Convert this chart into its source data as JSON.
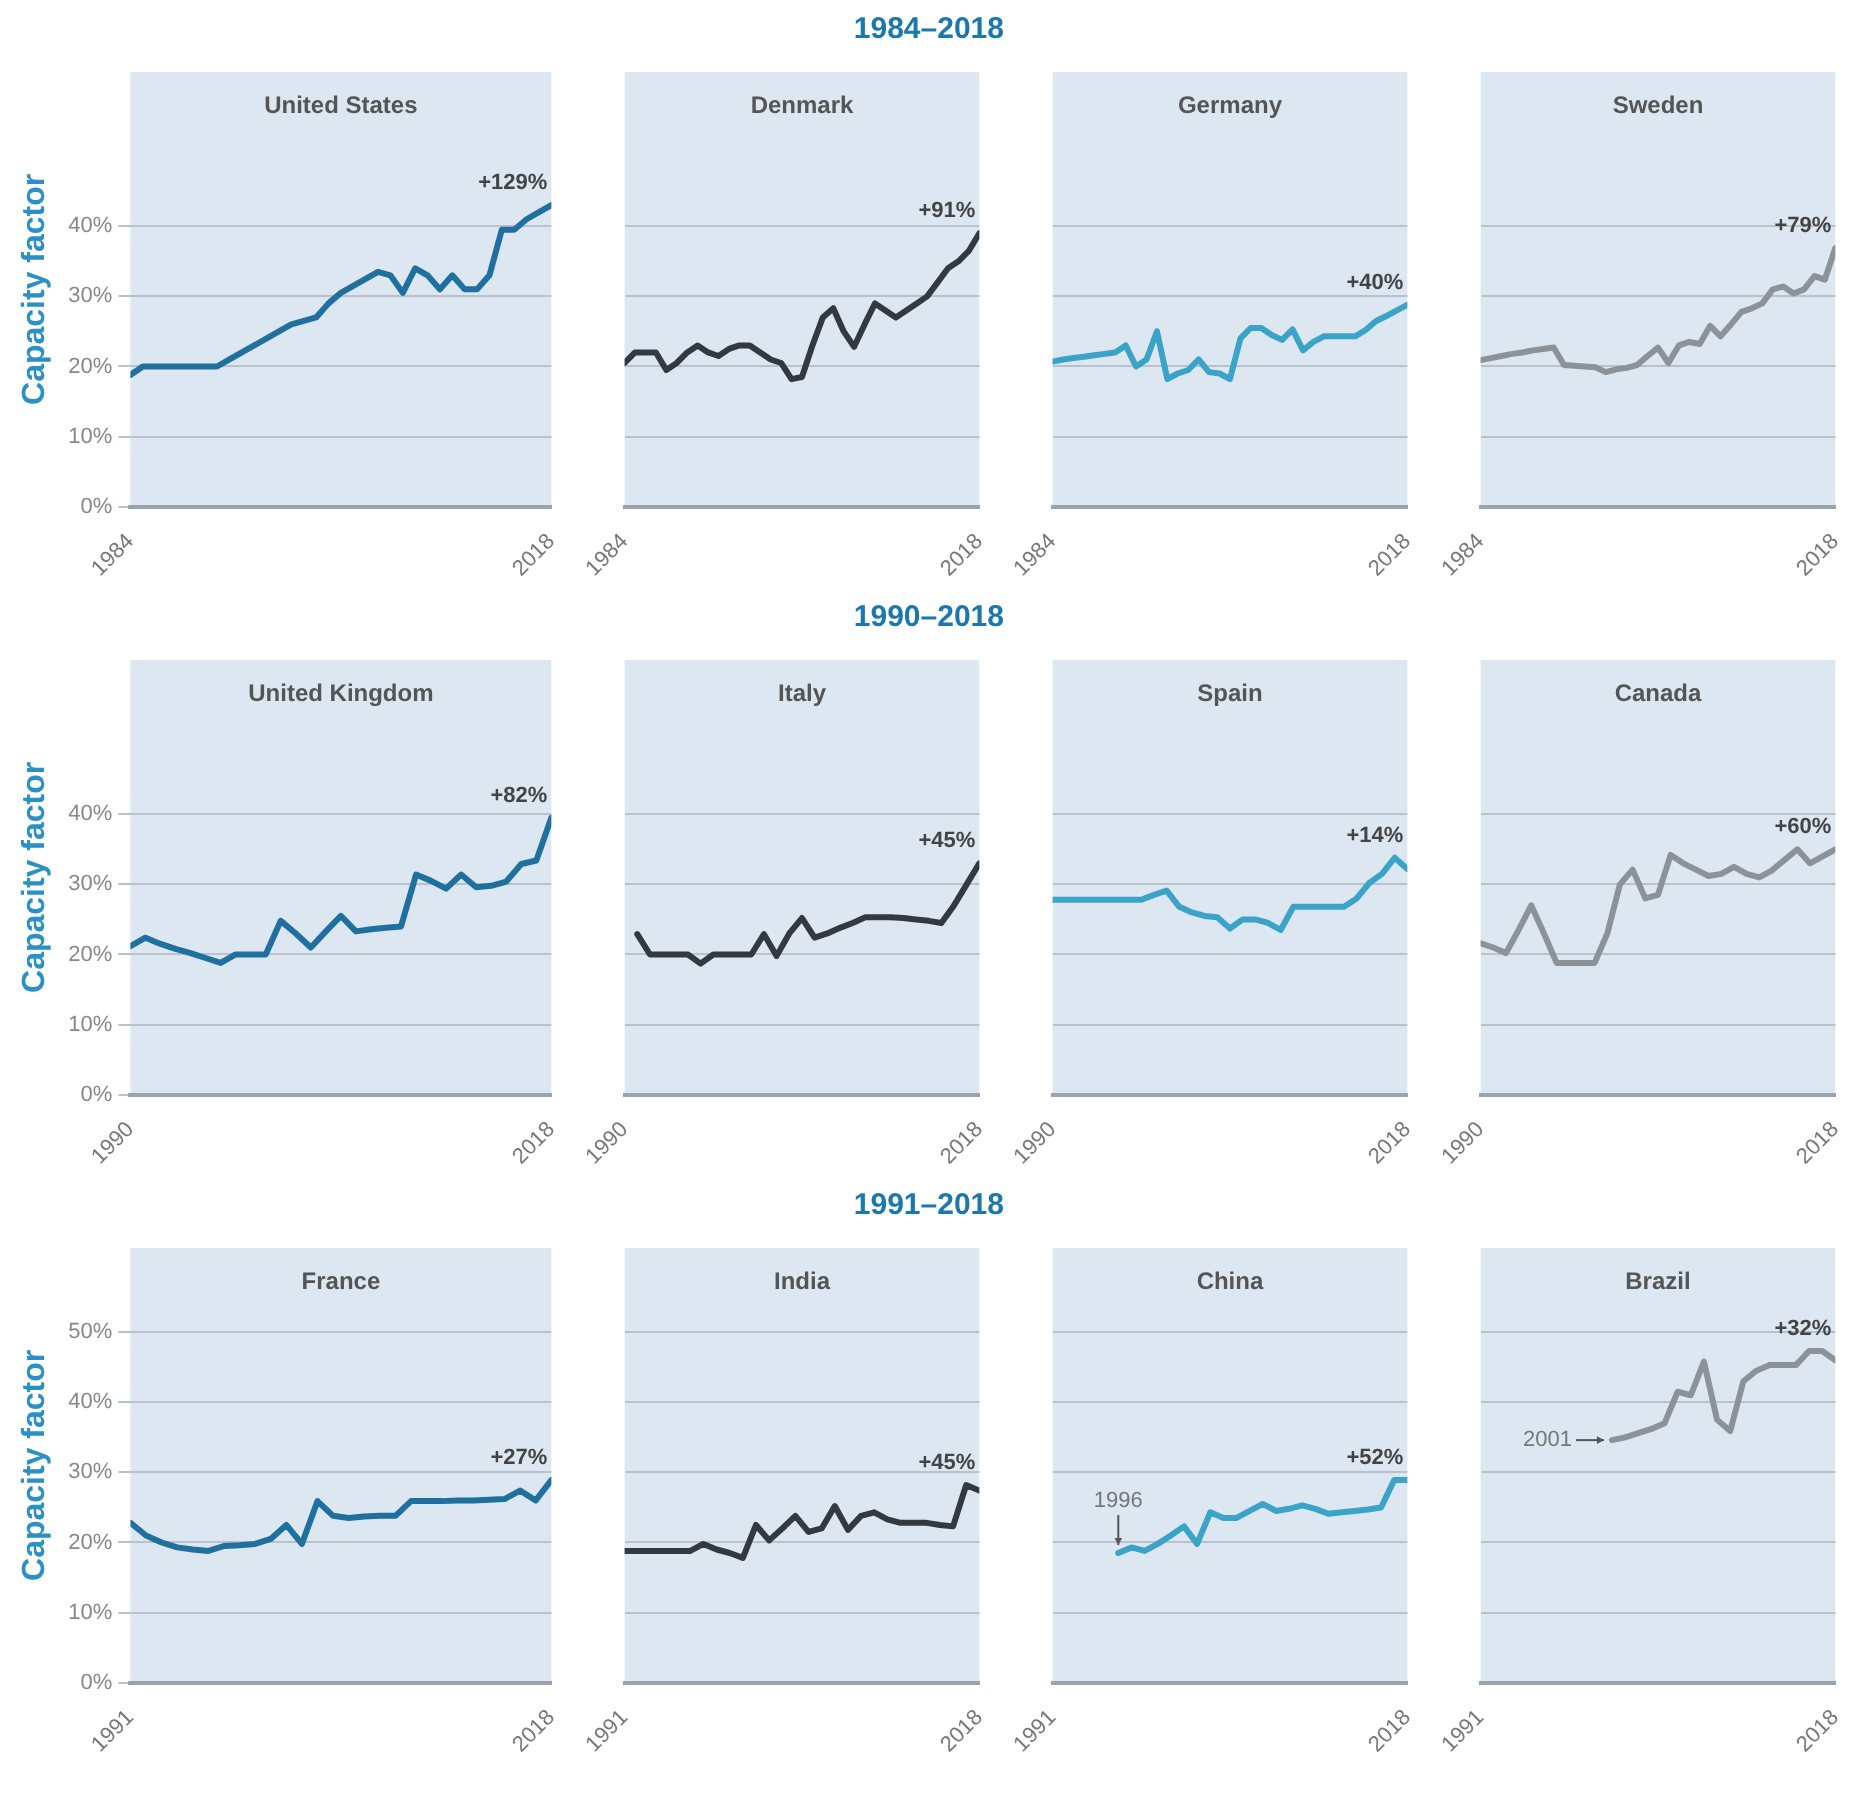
{
  "chart_data": [
    {
      "type": "line",
      "title": "United States",
      "ylabel": "Capacity factor",
      "color": "#1f6f9f",
      "x": [
        1984,
        1985,
        1986,
        1987,
        1988,
        1989,
        1990,
        1991,
        1992,
        1993,
        1994,
        1995,
        1996,
        1997,
        1998,
        1999,
        2000,
        2001,
        2002,
        2003,
        2004,
        2005,
        2006,
        2007,
        2008,
        2009,
        2010,
        2011,
        2012,
        2013,
        2014,
        2015,
        2016,
        2017,
        2018
      ],
      "values": [
        18.8,
        20,
        20,
        20,
        20,
        20,
        20,
        20,
        21,
        22,
        23,
        24,
        25,
        26,
        26.5,
        27,
        29,
        30.5,
        31.5,
        32.5,
        33.5,
        33,
        30.5,
        34,
        33,
        31,
        33,
        31,
        31,
        33,
        39.5,
        39.5,
        41,
        42,
        43
      ],
      "xlim": [
        1984,
        2018
      ],
      "xticks": [
        1984,
        2018
      ],
      "ylim": [
        0,
        62
      ],
      "yticks": [
        {
          "value": 0,
          "label": "0%"
        },
        {
          "value": 10,
          "label": "10%"
        },
        {
          "value": 20,
          "label": "20%"
        },
        {
          "value": 30,
          "label": "30%"
        },
        {
          "value": 40,
          "label": "40%"
        }
      ],
      "grid": "y",
      "marker": "none",
      "line_style": "solid",
      "annotations": [
        "+129%"
      ]
    },
    {
      "type": "line",
      "subtitle": "1984–2018",
      "title": "Denmark",
      "color": "#33393f",
      "x": [
        1984,
        1985,
        1986,
        1987,
        1988,
        1989,
        1990,
        1991,
        1992,
        1993,
        1994,
        1995,
        1996,
        1997,
        1998,
        1999,
        2000,
        2001,
        2002,
        2003,
        2004,
        2005,
        2006,
        2007,
        2008,
        2009,
        2010,
        2011,
        2012,
        2013,
        2014,
        2015,
        2016,
        2017,
        2018
      ],
      "values": [
        20.5,
        22,
        22,
        22,
        19.5,
        20.5,
        22,
        23,
        22,
        21.5,
        22.5,
        23,
        23,
        22,
        21,
        20.5,
        18.2,
        18.5,
        23,
        27,
        28.3,
        25,
        22.8,
        26,
        29,
        28,
        27,
        28,
        29,
        30,
        32,
        34,
        35,
        36.5,
        39
      ],
      "xlim": [
        1984,
        2018
      ],
      "xticks": [
        1984,
        2018
      ],
      "ylim": [
        0,
        62
      ],
      "yticks": [
        0,
        10,
        20,
        30,
        40
      ],
      "grid": "y",
      "tick_labels": "x",
      "marker": "none",
      "line_style": "solid",
      "annotations": [
        "+91%"
      ]
    },
    {
      "type": "line",
      "title": "Germany",
      "color": "#3ba3c8",
      "x": [
        1984,
        1985,
        1986,
        1987,
        1988,
        1989,
        1990,
        1991,
        1992,
        1993,
        1994,
        1995,
        1996,
        1997,
        1998,
        1999,
        2000,
        2001,
        2002,
        2003,
        2004,
        2005,
        2006,
        2007,
        2008,
        2009,
        2010,
        2011,
        2012,
        2013,
        2014,
        2015,
        2016,
        2017,
        2018
      ],
      "values": [
        20.7,
        21,
        21.2,
        21.4,
        21.6,
        21.8,
        22,
        23,
        20,
        21,
        25,
        18.2,
        19,
        19.5,
        21,
        19.2,
        19,
        18.2,
        24,
        25.5,
        25.5,
        24.5,
        23.8,
        25.3,
        22.3,
        23.5,
        24.3,
        24.3,
        24.3,
        24.3,
        25.2,
        26.5,
        27.2,
        28,
        28.8
      ],
      "xlim": [
        1984,
        2018
      ],
      "xticks": [
        1984,
        2018
      ],
      "ylim": [
        0,
        62
      ],
      "yticks": [
        0,
        10,
        20,
        30,
        40
      ],
      "grid": "y",
      "tick_labels": "x",
      "marker": "none",
      "line_style": "solid",
      "annotations": [
        "+40%"
      ]
    },
    {
      "type": "line",
      "title": "Sweden",
      "color": "#8c9298",
      "x": [
        1984,
        1985,
        1986,
        1987,
        1988,
        1989,
        1990,
        1991,
        1992,
        1993,
        1994,
        1995,
        1996,
        1997,
        1998,
        1999,
        2000,
        2001,
        2002,
        2003,
        2004,
        2005,
        2006,
        2007,
        2008,
        2009,
        2010,
        2011,
        2012,
        2013,
        2014,
        2015,
        2016,
        2017,
        2018
      ],
      "values": [
        20.9,
        21.2,
        21.5,
        21.8,
        22,
        22.3,
        22.5,
        22.7,
        20.2,
        20.1,
        20,
        19.9,
        19.2,
        19.6,
        19.8,
        20.2,
        21.5,
        22.7,
        20.5,
        23,
        23.5,
        23.2,
        25.8,
        24.3,
        26,
        27.8,
        28.3,
        29,
        31,
        31.4,
        30.4,
        31,
        32.9,
        32.4,
        36.9
      ],
      "xlim": [
        1984,
        2018
      ],
      "xticks": [
        1984,
        2018
      ],
      "ylim": [
        0,
        62
      ],
      "yticks": [
        0,
        10,
        20,
        30,
        40
      ],
      "grid": "y",
      "tick_labels": "x",
      "marker": "none",
      "line_style": "solid",
      "annotations": [
        "+79%"
      ]
    },
    {
      "type": "line",
      "title": "United Kingdom",
      "ylabel": "Capacity factor",
      "color": "#1f6f9f",
      "x": [
        1990,
        1991,
        1992,
        1993,
        1994,
        1995,
        1996,
        1997,
        1998,
        1999,
        2000,
        2001,
        2002,
        2003,
        2004,
        2005,
        2006,
        2007,
        2008,
        2009,
        2010,
        2011,
        2012,
        2013,
        2014,
        2015,
        2016,
        2017,
        2018
      ],
      "values": [
        21.2,
        22.4,
        21.5,
        20.8,
        20.2,
        19.5,
        18.8,
        20,
        20,
        20,
        24.8,
        23,
        21,
        23.3,
        25.5,
        23.3,
        23.6,
        23.8,
        24,
        31.4,
        30.5,
        29.4,
        31.4,
        29.6,
        29.8,
        30.4,
        32.9,
        33.4,
        39.5
      ],
      "xlim": [
        1990,
        2018
      ],
      "xticks": [
        1990,
        2018
      ],
      "ylim": [
        0,
        62
      ],
      "yticks": [
        {
          "value": 0,
          "label": "0%"
        },
        {
          "value": 10,
          "label": "10%"
        },
        {
          "value": 20,
          "label": "20%"
        },
        {
          "value": 30,
          "label": "30%"
        },
        {
          "value": 40,
          "label": "40%"
        }
      ],
      "grid": "y",
      "marker": "none",
      "line_style": "solid",
      "annotations": [
        "+82%"
      ]
    },
    {
      "type": "line",
      "subtitle": "1990–2018",
      "title": "Italy",
      "color": "#33393f",
      "x": [
        1991,
        1992,
        1993,
        1994,
        1995,
        1996,
        1997,
        1998,
        1999,
        2000,
        2001,
        2002,
        2003,
        2004,
        2005,
        2006,
        2007,
        2008,
        2009,
        2010,
        2011,
        2012,
        2013,
        2014,
        2015,
        2016,
        2017,
        2018
      ],
      "values": [
        22.9,
        20,
        20,
        20,
        20,
        18.7,
        20,
        20,
        20,
        20,
        22.9,
        19.8,
        23,
        25.2,
        22.4,
        23,
        23.8,
        24.5,
        25.3,
        25.3,
        25.3,
        25.2,
        25,
        24.8,
        24.5,
        27,
        30,
        33
      ],
      "xlim": [
        1990,
        2018
      ],
      "xticks": [
        1990,
        2018
      ],
      "ylim": [
        0,
        62
      ],
      "yticks": [
        0,
        10,
        20,
        30,
        40
      ],
      "grid": "y",
      "tick_labels": "x",
      "marker": "none",
      "line_style": "solid",
      "annotations": [
        "+45%"
      ]
    },
    {
      "type": "line",
      "title": "Spain",
      "color": "#3ba3c8",
      "x": [
        1990,
        1991,
        1992,
        1993,
        1994,
        1995,
        1996,
        1997,
        1998,
        1999,
        2000,
        2001,
        2002,
        2003,
        2004,
        2005,
        2006,
        2007,
        2008,
        2009,
        2010,
        2011,
        2012,
        2013,
        2014,
        2015,
        2016,
        2017,
        2018
      ],
      "values": [
        27.8,
        27.8,
        27.8,
        27.8,
        27.8,
        27.8,
        27.8,
        27.8,
        28.5,
        29.1,
        26.8,
        26,
        25.5,
        25.3,
        23.7,
        25,
        25,
        24.5,
        23.5,
        26.8,
        26.8,
        26.8,
        26.8,
        26.8,
        28,
        30.2,
        31.5,
        33.8,
        32.2
      ],
      "xlim": [
        1990,
        2018
      ],
      "xticks": [
        1990,
        2018
      ],
      "ylim": [
        0,
        62
      ],
      "yticks": [
        0,
        10,
        20,
        30,
        40
      ],
      "grid": "y",
      "tick_labels": "x",
      "marker": "none",
      "line_style": "solid",
      "annotations": [
        "+14%"
      ]
    },
    {
      "type": "line",
      "title": "Canada",
      "color": "#8c9298",
      "x": [
        1990,
        1991,
        1992,
        1993,
        1994,
        1995,
        1996,
        1997,
        1998,
        1999,
        2000,
        2001,
        2002,
        2003,
        2004,
        2005,
        2006,
        2007,
        2008,
        2009,
        2010,
        2011,
        2012,
        2013,
        2014,
        2015,
        2016,
        2017,
        2018
      ],
      "values": [
        21.6,
        21,
        20.2,
        23.5,
        27,
        23,
        18.8,
        18.8,
        18.8,
        18.8,
        23,
        30,
        32.1,
        28,
        28.5,
        34.2,
        33,
        32.1,
        31.2,
        31.5,
        32.5,
        31.5,
        31,
        32,
        33.5,
        35,
        33,
        34,
        35
      ],
      "xlim": [
        1990,
        2018
      ],
      "xticks": [
        1990,
        2018
      ],
      "ylim": [
        0,
        62
      ],
      "yticks": [
        0,
        10,
        20,
        30,
        40
      ],
      "grid": "y",
      "tick_labels": "x",
      "marker": "none",
      "line_style": "solid",
      "annotations": [
        "+60%"
      ]
    },
    {
      "type": "line",
      "title": "France",
      "ylabel": "Capacity factor",
      "color": "#1f6f9f",
      "x": [
        1991,
        1992,
        1993,
        1994,
        1995,
        1996,
        1997,
        1998,
        1999,
        2000,
        2001,
        2002,
        2003,
        2004,
        2005,
        2006,
        2007,
        2008,
        2009,
        2010,
        2011,
        2012,
        2013,
        2014,
        2015,
        2016,
        2017,
        2018
      ],
      "values": [
        22.8,
        21,
        20,
        19.3,
        19,
        18.8,
        19.5,
        19.6,
        19.8,
        20.5,
        22.5,
        19.8,
        25.9,
        23.8,
        23.5,
        23.7,
        23.8,
        23.8,
        25.9,
        25.9,
        25.9,
        26,
        26,
        26.1,
        26.2,
        27.4,
        26,
        28.9
      ],
      "xlim": [
        1991,
        2018
      ],
      "xticks": [
        1991,
        2018
      ],
      "ylim": [
        0,
        62
      ],
      "yticks": [
        {
          "value": 0,
          "label": "0%"
        },
        {
          "value": 10,
          "label": "10%"
        },
        {
          "value": 20,
          "label": "20%"
        },
        {
          "value": 30,
          "label": "30%"
        },
        {
          "value": 40,
          "label": "40%"
        },
        {
          "value": 50,
          "label": "50%"
        }
      ],
      "grid": "y",
      "marker": "none",
      "line_style": "solid",
      "annotations": [
        "+27%"
      ]
    },
    {
      "type": "line",
      "subtitle": "1991–2018",
      "title": "India",
      "color": "#33393f",
      "x": [
        1991,
        1992,
        1993,
        1994,
        1995,
        1996,
        1997,
        1998,
        1999,
        2000,
        2001,
        2002,
        2003,
        2004,
        2005,
        2006,
        2007,
        2008,
        2009,
        2010,
        2011,
        2012,
        2013,
        2014,
        2015,
        2016,
        2017,
        2018
      ],
      "values": [
        18.8,
        18.8,
        18.8,
        18.8,
        18.8,
        18.8,
        19.8,
        19,
        18.5,
        17.8,
        22.5,
        20.3,
        22,
        23.8,
        21.5,
        22,
        25.2,
        21.8,
        23.8,
        24.3,
        23.3,
        22.8,
        22.8,
        22.8,
        22.5,
        22.3,
        28.2,
        27.4
      ],
      "xlim": [
        1991,
        2018
      ],
      "xticks": [
        1991,
        2018
      ],
      "ylim": [
        0,
        62
      ],
      "yticks": [
        0,
        10,
        20,
        30,
        40,
        50
      ],
      "grid": "y",
      "tick_labels": "x",
      "marker": "none",
      "line_style": "solid",
      "annotations": [
        "+45%"
      ]
    },
    {
      "type": "line",
      "title": "China",
      "color": "#3ba3c8",
      "x": [
        1996,
        1997,
        1998,
        1999,
        2000,
        2001,
        2002,
        2003,
        2004,
        2005,
        2006,
        2007,
        2008,
        2009,
        2010,
        2011,
        2012,
        2013,
        2014,
        2015,
        2016,
        2017,
        2018
      ],
      "values": [
        18.5,
        19.3,
        18.8,
        19.8,
        21,
        22.3,
        19.8,
        24.3,
        23.5,
        23.5,
        24.5,
        25.5,
        24.5,
        24.8,
        25.3,
        24.8,
        24.1,
        24.3,
        24.5,
        24.7,
        25,
        28.9,
        28.9
      ],
      "xlim": [
        1991,
        2018
      ],
      "xticks": [
        1991,
        2018
      ],
      "ylim": [
        0,
        62
      ],
      "yticks": [
        0,
        10,
        20,
        30,
        40,
        50
      ],
      "grid": "y",
      "tick_labels": "x",
      "marker": "none",
      "line_style": "solid",
      "annotations": [
        "+52%",
        "1996"
      ]
    },
    {
      "type": "line",
      "title": "Brazil",
      "color": "#8c9298",
      "x": [
        2001,
        2002,
        2003,
        2004,
        2005,
        2006,
        2007,
        2008,
        2009,
        2010,
        2011,
        2012,
        2013,
        2014,
        2015,
        2016,
        2017,
        2018
      ],
      "values": [
        34.6,
        35,
        35.6,
        36.2,
        37,
        41.5,
        41,
        45.8,
        37.5,
        35.9,
        43,
        44.5,
        45.3,
        45.3,
        45.3,
        47.3,
        47.3,
        46
      ],
      "xlim": [
        1991,
        2018
      ],
      "xticks": [
        1991,
        2018
      ],
      "ylim": [
        0,
        62
      ],
      "yticks": [
        0,
        10,
        20,
        30,
        40,
        50
      ],
      "grid": "y",
      "tick_labels": "x",
      "marker": "none",
      "line_style": "solid",
      "annotations": [
        "+32%",
        "2001"
      ]
    }
  ]
}
